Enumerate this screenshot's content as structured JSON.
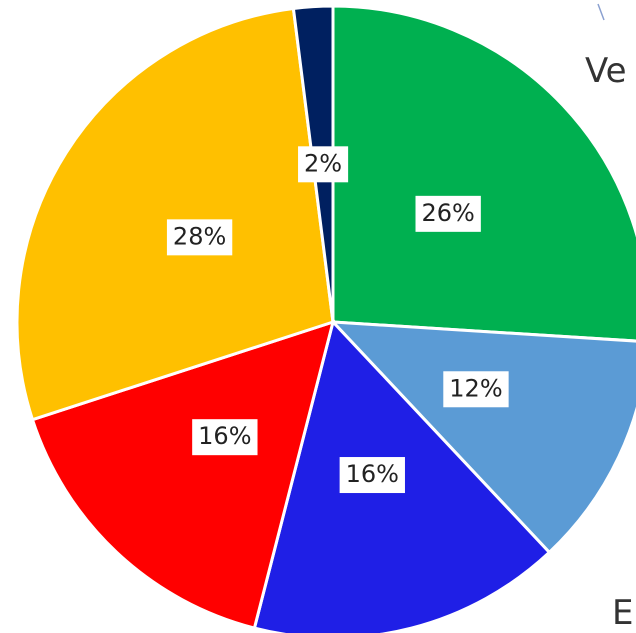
{
  "chart_data": {
    "type": "pie",
    "values": [
      26,
      12,
      16,
      16,
      28,
      2
    ],
    "value_labels": [
      "26%",
      "12%",
      "16%",
      "16%",
      "28%",
      "2%"
    ],
    "colors": [
      "#00b050",
      "#5b9bd5",
      "#1f1fe6",
      "#ff0000",
      "#ffc000",
      "#002060"
    ],
    "annotations": [
      "Ve",
      "E"
    ]
  }
}
